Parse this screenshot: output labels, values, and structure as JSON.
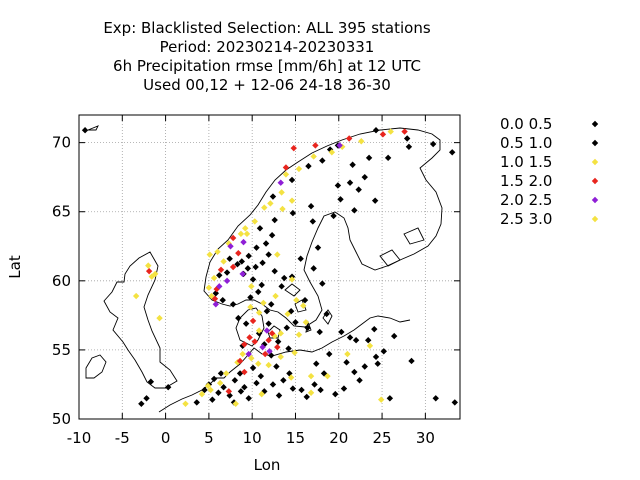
{
  "chart_data": {
    "type": "scatter",
    "title_lines": [
      "Exp: Blacklisted   Selection: ALL     395 stations",
      "Period: 20230214-20230331",
      "6h Precipitation rmse [mm/6h] at  12 UTC",
      "Used  00,12  + 12-06 24-18 36-30"
    ],
    "xlabel": "Lon",
    "ylabel": "Lat",
    "xlim": [
      -10,
      34
    ],
    "ylim": [
      50,
      72
    ],
    "xticks": [
      -10,
      -5,
      0,
      5,
      10,
      15,
      20,
      25,
      30
    ],
    "yticks": [
      50,
      55,
      60,
      65,
      70
    ],
    "grid": true,
    "legend_position": "outside-right",
    "series": [
      {
        "name": "0.0 0.5",
        "color": "#000000",
        "points": [
          [
            -9.3,
            70.9
          ],
          [
            -2.8,
            51.1
          ],
          [
            -2.2,
            51.5
          ],
          [
            -1.7,
            52.7
          ],
          [
            0.3,
            52.3
          ],
          [
            3.6,
            51.2
          ],
          [
            4.5,
            52.1
          ],
          [
            5.0,
            52.5
          ],
          [
            5.6,
            52.9
          ],
          [
            6.4,
            53.3
          ],
          [
            6.7,
            52.3
          ],
          [
            7.4,
            51.7
          ],
          [
            8.0,
            52.8
          ],
          [
            8.6,
            53.3
          ],
          [
            9.1,
            52.3
          ],
          [
            10.5,
            52.6
          ],
          [
            11.4,
            52.0
          ],
          [
            12.4,
            52.5
          ],
          [
            13.6,
            52.8
          ],
          [
            14.3,
            53.3
          ],
          [
            15.7,
            52.1
          ],
          [
            17.2,
            52.5
          ],
          [
            18.3,
            53.3
          ],
          [
            19.6,
            51.8
          ],
          [
            20.6,
            52.2
          ],
          [
            21.8,
            53.4
          ],
          [
            22.4,
            52.8
          ],
          [
            23.0,
            53.8
          ],
          [
            24.3,
            54.5
          ],
          [
            25.2,
            54.9
          ],
          [
            21.3,
            55.9
          ],
          [
            23.4,
            55.7
          ],
          [
            24.1,
            56.5
          ],
          [
            26.4,
            56.0
          ],
          [
            28.4,
            54.2
          ],
          [
            25.9,
            51.5
          ],
          [
            31.2,
            51.5
          ],
          [
            33.4,
            51.2
          ],
          [
            17.4,
            54.0
          ],
          [
            18.9,
            54.7
          ],
          [
            14.2,
            55.1
          ],
          [
            13.0,
            55.6
          ],
          [
            11.7,
            57.8
          ],
          [
            11.9,
            56.9
          ],
          [
            10.7,
            59.2
          ],
          [
            10.1,
            60.1
          ],
          [
            9.0,
            60.5
          ],
          [
            8.3,
            61.2
          ],
          [
            7.4,
            61.6
          ],
          [
            9.6,
            61.8
          ],
          [
            10.5,
            62.4
          ],
          [
            11.6,
            62.7
          ],
          [
            12.3,
            63.3
          ],
          [
            10.4,
            61.0
          ],
          [
            11.1,
            59.7
          ],
          [
            13.4,
            59.6
          ],
          [
            14.6,
            60.3
          ],
          [
            15.6,
            61.6
          ],
          [
            17.1,
            60.9
          ],
          [
            18.1,
            59.8
          ],
          [
            16.1,
            58.6
          ],
          [
            14.5,
            57.8
          ],
          [
            17.8,
            56.3
          ],
          [
            11.9,
            61.9
          ],
          [
            12.6,
            60.7
          ],
          [
            13.7,
            60.2
          ],
          [
            10.9,
            63.8
          ],
          [
            12.6,
            64.4
          ],
          [
            14.7,
            64.9
          ],
          [
            16.8,
            65.4
          ],
          [
            19.9,
            66.9
          ],
          [
            21.8,
            65.1
          ],
          [
            23.0,
            67.5
          ],
          [
            25.7,
            68.9
          ],
          [
            28.1,
            69.7
          ],
          [
            30.9,
            69.9
          ],
          [
            33.1,
            69.3
          ],
          [
            27.9,
            70.3
          ],
          [
            24.3,
            70.9
          ],
          [
            19.9,
            69.8
          ],
          [
            18.1,
            68.7
          ],
          [
            16.5,
            68.3
          ],
          [
            14.6,
            67.3
          ],
          [
            12.4,
            66.1
          ]
        ]
      },
      {
        "name": "0.5 1.0",
        "color": "#000000",
        "points": [
          [
            5.4,
            51.4
          ],
          [
            6.1,
            51.9
          ],
          [
            7.9,
            51.2
          ],
          [
            8.7,
            52.0
          ],
          [
            9.6,
            51.5
          ],
          [
            10.1,
            53.7
          ],
          [
            11.0,
            53.1
          ],
          [
            12.8,
            53.8
          ],
          [
            13.1,
            51.7
          ],
          [
            14.7,
            52.2
          ],
          [
            16.3,
            51.6
          ],
          [
            17.9,
            52.1
          ],
          [
            20.9,
            54.1
          ],
          [
            24.5,
            54.0
          ],
          [
            22.0,
            55.7
          ],
          [
            20.3,
            56.3
          ],
          [
            11.4,
            55.4
          ],
          [
            12.2,
            54.6
          ],
          [
            10.8,
            56.2
          ],
          [
            9.3,
            56.9
          ],
          [
            8.4,
            57.3
          ],
          [
            8.9,
            55.3
          ],
          [
            9.8,
            58.8
          ],
          [
            7.8,
            58.3
          ],
          [
            6.6,
            58.6
          ],
          [
            5.8,
            59.1
          ],
          [
            6.2,
            60.4
          ],
          [
            7.1,
            60.6
          ],
          [
            8.8,
            61.4
          ],
          [
            9.5,
            60.9
          ],
          [
            11.2,
            61.3
          ],
          [
            12.2,
            58.3
          ],
          [
            14.0,
            56.6
          ],
          [
            15.0,
            57.0
          ],
          [
            16.4,
            56.6
          ],
          [
            18.6,
            57.6
          ],
          [
            17.6,
            62.4
          ],
          [
            17.0,
            64.3
          ],
          [
            19.4,
            64.7
          ],
          [
            20.2,
            65.9
          ],
          [
            21.3,
            67.1
          ],
          [
            22.3,
            66.6
          ],
          [
            24.2,
            65.8
          ],
          [
            21.6,
            68.4
          ],
          [
            19.0,
            69.5
          ],
          [
            23.5,
            68.9
          ]
        ]
      },
      {
        "name": "1.0 1.5",
        "color": "#f4e242",
        "points": [
          [
            -1.6,
            60.3
          ],
          [
            -1.2,
            60.5
          ],
          [
            -3.4,
            58.9
          ],
          [
            -0.7,
            57.3
          ],
          [
            2.3,
            51.1
          ],
          [
            4.2,
            51.8
          ],
          [
            4.9,
            52.4
          ],
          [
            5.2,
            52.1
          ],
          [
            6.3,
            52.6
          ],
          [
            7.0,
            53.3
          ],
          [
            8.3,
            54.1
          ],
          [
            8.9,
            54.7
          ],
          [
            9.9,
            54.4
          ],
          [
            10.7,
            54.0
          ],
          [
            11.9,
            53.9
          ],
          [
            13.3,
            54.5
          ],
          [
            14.5,
            53.0
          ],
          [
            14.9,
            54.8
          ],
          [
            15.4,
            56.1
          ],
          [
            16.2,
            57.0
          ],
          [
            15.9,
            58.2
          ],
          [
            14.1,
            57.6
          ],
          [
            13.3,
            56.2
          ],
          [
            12.6,
            56.0
          ],
          [
            10.8,
            57.7
          ],
          [
            11.3,
            58.4
          ],
          [
            9.9,
            59.6
          ],
          [
            5.3,
            58.9
          ],
          [
            5.6,
            60.2
          ],
          [
            6.7,
            61.4
          ],
          [
            5.1,
            61.9
          ],
          [
            7.3,
            62.7
          ],
          [
            8.7,
            63.4
          ],
          [
            9.2,
            63.8
          ],
          [
            10.3,
            64.3
          ],
          [
            11.4,
            65.3
          ],
          [
            12.1,
            65.6
          ],
          [
            13.4,
            66.4
          ],
          [
            13.9,
            67.7
          ],
          [
            15.4,
            68.1
          ],
          [
            17.1,
            69.0
          ],
          [
            19.2,
            69.3
          ],
          [
            20.4,
            69.7
          ],
          [
            22.6,
            70.1
          ],
          [
            26.0,
            70.8
          ],
          [
            23.6,
            55.3
          ],
          [
            24.9,
            51.4
          ],
          [
            21.0,
            54.7
          ],
          [
            14.6,
            60.1
          ],
          [
            12.9,
            61.9
          ],
          [
            18.7,
            53.1
          ],
          [
            16.8,
            51.9
          ]
        ]
      },
      {
        "name": "1.5 2.0",
        "color": "#e8251e",
        "points": [
          [
            -1.9,
            60.7
          ],
          [
            5.7,
            58.7
          ],
          [
            5.9,
            59.4
          ],
          [
            6.4,
            60.8
          ],
          [
            7.8,
            61.0
          ],
          [
            8.4,
            62.0
          ],
          [
            7.8,
            63.1
          ],
          [
            9.1,
            55.4
          ],
          [
            9.7,
            55.9
          ],
          [
            10.3,
            55.6
          ],
          [
            11.9,
            55.7
          ],
          [
            12.3,
            56.2
          ],
          [
            10.1,
            57.1
          ],
          [
            11.5,
            54.7
          ],
          [
            12.9,
            55.2
          ],
          [
            8.6,
            54.2
          ],
          [
            9.1,
            53.4
          ],
          [
            7.3,
            52.0
          ],
          [
            13.9,
            68.2
          ],
          [
            14.8,
            69.6
          ],
          [
            17.3,
            69.8
          ],
          [
            21.2,
            70.3
          ],
          [
            27.6,
            70.8
          ],
          [
            25.1,
            70.6
          ]
        ]
      },
      {
        "name": "2.0 2.5",
        "color": "#8f1fd6",
        "points": [
          [
            5.8,
            58.3
          ],
          [
            6.2,
            59.6
          ],
          [
            7.1,
            60.0
          ],
          [
            8.9,
            60.5
          ],
          [
            7.5,
            62.5
          ],
          [
            9.0,
            62.8
          ],
          [
            12.0,
            54.9
          ],
          [
            11.2,
            55.2
          ],
          [
            9.6,
            54.7
          ],
          [
            11.7,
            56.4
          ],
          [
            13.3,
            67.1
          ],
          [
            20.1,
            69.8
          ]
        ]
      },
      {
        "name": "2.5 3.0",
        "color": "#f4e242",
        "points": [
          [
            -2.0,
            61.1
          ],
          [
            5.0,
            59.5
          ],
          [
            6.0,
            62.1
          ],
          [
            9.4,
            63.4
          ],
          [
            10.8,
            56.4
          ],
          [
            12.7,
            58.9
          ],
          [
            15.1,
            58.6
          ],
          [
            13.5,
            65.2
          ],
          [
            14.6,
            65.8
          ],
          [
            9.8,
            58.1
          ],
          [
            16.8,
            53.1
          ],
          [
            11.1,
            51.8
          ],
          [
            8.1,
            51.1
          ]
        ]
      }
    ]
  }
}
